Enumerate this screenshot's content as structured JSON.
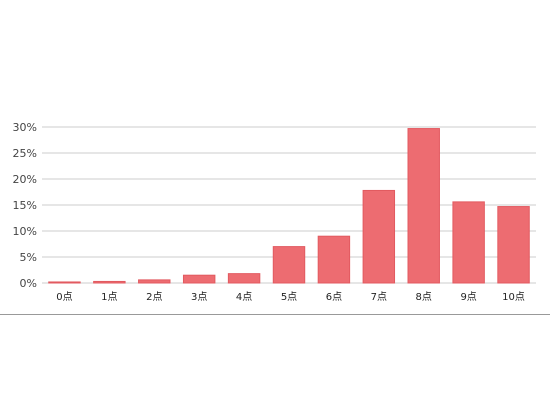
{
  "chart_data": {
    "type": "bar",
    "categories": [
      "0点",
      "1点",
      "2点",
      "3点",
      "4点",
      "5点",
      "6点",
      "7点",
      "8点",
      "9点",
      "10点"
    ],
    "values": [
      0.2,
      0.3,
      0.6,
      1.5,
      1.8,
      7.0,
      9.0,
      17.8,
      29.7,
      15.6,
      14.7
    ],
    "ylim": [
      0,
      30
    ],
    "yticks": [
      0,
      5,
      10,
      15,
      20,
      25,
      30
    ],
    "ytick_labels": [
      "0%",
      "5%",
      "10%",
      "15%",
      "20%",
      "25%",
      "30%"
    ],
    "grid": true,
    "bar_color": "#ed6c71",
    "bar_border_color": "#e25a60",
    "title": "",
    "xlabel": "",
    "ylabel": ""
  }
}
